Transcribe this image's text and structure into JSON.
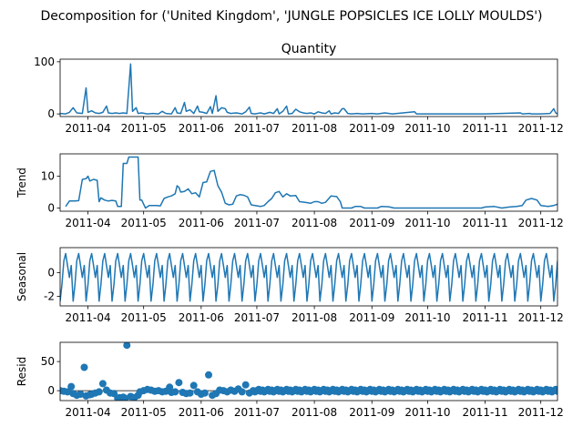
{
  "figure_title": "Decomposition for ('United Kingdom', 'JUNGLE POPSICLES ICE LOLLY MOULDS')",
  "colors": {
    "series": "#1f77b4",
    "axis": "#000000"
  },
  "chart_data": [
    {
      "type": "line",
      "title": "Quantity",
      "ylabel": "",
      "xlim": [
        "2011-03-17",
        "2011-12-10"
      ],
      "ylim": [
        -5,
        105
      ],
      "yticks": [
        0,
        100
      ],
      "xticks": [
        "2011-04",
        "2011-05",
        "2011-06",
        "2011-07",
        "2011-08",
        "2011-09",
        "2011-10",
        "2011-11",
        "2011-12"
      ],
      "grid": false,
      "points": [
        [
          "2011-03-17",
          1
        ],
        [
          "2011-03-20",
          0
        ],
        [
          "2011-03-22",
          3
        ],
        [
          "2011-03-24",
          12
        ],
        [
          "2011-03-26",
          2
        ],
        [
          "2011-03-29",
          1
        ],
        [
          "2011-03-31",
          50
        ],
        [
          "2011-04-01",
          3
        ],
        [
          "2011-04-03",
          6
        ],
        [
          "2011-04-05",
          2
        ],
        [
          "2011-04-07",
          1
        ],
        [
          "2011-04-09",
          3
        ],
        [
          "2011-04-11",
          15
        ],
        [
          "2011-04-12",
          2
        ],
        [
          "2011-04-14",
          1
        ],
        [
          "2011-04-16",
          2
        ],
        [
          "2011-04-18",
          1
        ],
        [
          "2011-04-20",
          2
        ],
        [
          "2011-04-22",
          1
        ],
        [
          "2011-04-24",
          96
        ],
        [
          "2011-04-25",
          5
        ],
        [
          "2011-04-27",
          12
        ],
        [
          "2011-04-28",
          1
        ],
        [
          "2011-04-30",
          2
        ],
        [
          "2011-05-03",
          0
        ],
        [
          "2011-05-06",
          1
        ],
        [
          "2011-05-09",
          0
        ],
        [
          "2011-05-11",
          5
        ],
        [
          "2011-05-13",
          1
        ],
        [
          "2011-05-16",
          0
        ],
        [
          "2011-05-18",
          12
        ],
        [
          "2011-05-19",
          2
        ],
        [
          "2011-05-21",
          1
        ],
        [
          "2011-05-23",
          22
        ],
        [
          "2011-05-24",
          5
        ],
        [
          "2011-05-26",
          8
        ],
        [
          "2011-05-28",
          1
        ],
        [
          "2011-05-30",
          15
        ],
        [
          "2011-05-31",
          4
        ],
        [
          "2011-06-02",
          3
        ],
        [
          "2011-06-04",
          1
        ],
        [
          "2011-06-06",
          14
        ],
        [
          "2011-06-07",
          1
        ],
        [
          "2011-06-09",
          35
        ],
        [
          "2011-06-10",
          5
        ],
        [
          "2011-06-12",
          12
        ],
        [
          "2011-06-14",
          10
        ],
        [
          "2011-06-15",
          3
        ],
        [
          "2011-06-17",
          1
        ],
        [
          "2011-06-20",
          2
        ],
        [
          "2011-06-23",
          0
        ],
        [
          "2011-06-25",
          4
        ],
        [
          "2011-06-27",
          13
        ],
        [
          "2011-06-28",
          1
        ],
        [
          "2011-06-30",
          0
        ],
        [
          "2011-07-03",
          2
        ],
        [
          "2011-07-05",
          0
        ],
        [
          "2011-07-08",
          3
        ],
        [
          "2011-07-10",
          1
        ],
        [
          "2011-07-12",
          10
        ],
        [
          "2011-07-13",
          0
        ],
        [
          "2011-07-15",
          5
        ],
        [
          "2011-07-17",
          15
        ],
        [
          "2011-07-18",
          0
        ],
        [
          "2011-07-20",
          1
        ],
        [
          "2011-07-22",
          9
        ],
        [
          "2011-07-24",
          4
        ],
        [
          "2011-07-26",
          2
        ],
        [
          "2011-07-28",
          1
        ],
        [
          "2011-07-30",
          2
        ],
        [
          "2011-08-01",
          0
        ],
        [
          "2011-08-03",
          4
        ],
        [
          "2011-08-05",
          2
        ],
        [
          "2011-08-07",
          1
        ],
        [
          "2011-08-09",
          6
        ],
        [
          "2011-08-10",
          0
        ],
        [
          "2011-08-12",
          2
        ],
        [
          "2011-08-14",
          1
        ],
        [
          "2011-08-16",
          10
        ],
        [
          "2011-08-17",
          10
        ],
        [
          "2011-08-19",
          1
        ],
        [
          "2011-08-21",
          0
        ],
        [
          "2011-08-24",
          1
        ],
        [
          "2011-08-27",
          0
        ],
        [
          "2011-09-01",
          1
        ],
        [
          "2011-09-04",
          0
        ],
        [
          "2011-09-08",
          2
        ],
        [
          "2011-09-12",
          0
        ],
        [
          "2011-09-24",
          4
        ],
        [
          "2011-09-25",
          0
        ],
        [
          "2011-10-15",
          0
        ],
        [
          "2011-11-01",
          0
        ],
        [
          "2011-11-20",
          2
        ],
        [
          "2011-11-21",
          0
        ],
        [
          "2011-11-25",
          1
        ],
        [
          "2011-11-26",
          0
        ],
        [
          "2011-12-01",
          0
        ],
        [
          "2011-12-06",
          1
        ],
        [
          "2011-12-08",
          10
        ],
        [
          "2011-12-09",
          2
        ],
        [
          "2011-12-10",
          0
        ]
      ]
    },
    {
      "type": "line",
      "title": "",
      "ylabel": "Trend",
      "xlim": [
        "2011-03-17",
        "2011-12-10"
      ],
      "ylim": [
        -1,
        17
      ],
      "yticks": [
        0,
        10
      ],
      "xticks": [
        "2011-04",
        "2011-05",
        "2011-06",
        "2011-07",
        "2011-08",
        "2011-09",
        "2011-10",
        "2011-11",
        "2011-12"
      ],
      "grid": false,
      "points": [
        [
          "2011-03-20",
          0.5
        ],
        [
          "2011-03-22",
          2.2
        ],
        [
          "2011-03-25",
          2.2
        ],
        [
          "2011-03-27",
          2.3
        ],
        [
          "2011-03-29",
          9.0
        ],
        [
          "2011-03-31",
          9.2
        ],
        [
          "2011-04-01",
          10.0
        ],
        [
          "2011-04-02",
          8.5
        ],
        [
          "2011-04-04",
          9.0
        ],
        [
          "2011-04-06",
          8.7
        ],
        [
          "2011-04-07",
          2.0
        ],
        [
          "2011-04-08",
          3.2
        ],
        [
          "2011-04-10",
          2.5
        ],
        [
          "2011-04-12",
          2.2
        ],
        [
          "2011-04-14",
          2.4
        ],
        [
          "2011-04-16",
          2.2
        ],
        [
          "2011-04-17",
          0.5
        ],
        [
          "2011-04-19",
          0.5
        ],
        [
          "2011-04-20",
          14.0
        ],
        [
          "2011-04-22",
          14.0
        ],
        [
          "2011-04-23",
          16.0
        ],
        [
          "2011-04-28",
          16.0
        ],
        [
          "2011-04-29",
          2.5
        ],
        [
          "2011-04-30",
          2.5
        ],
        [
          "2011-05-02",
          0.0
        ],
        [
          "2011-05-04",
          0.8
        ],
        [
          "2011-05-06",
          0.8
        ],
        [
          "2011-05-08",
          0.8
        ],
        [
          "2011-05-10",
          0.7
        ],
        [
          "2011-05-12",
          3.0
        ],
        [
          "2011-05-14",
          3.5
        ],
        [
          "2011-05-16",
          3.8
        ],
        [
          "2011-05-18",
          4.5
        ],
        [
          "2011-05-19",
          7.0
        ],
        [
          "2011-05-20",
          6.5
        ],
        [
          "2011-05-21",
          5.0
        ],
        [
          "2011-05-23",
          5.2
        ],
        [
          "2011-05-25",
          6.0
        ],
        [
          "2011-05-27",
          4.5
        ],
        [
          "2011-05-29",
          4.8
        ],
        [
          "2011-05-31",
          3.5
        ],
        [
          "2011-06-02",
          8.0
        ],
        [
          "2011-06-04",
          8.2
        ],
        [
          "2011-06-06",
          11.5
        ],
        [
          "2011-06-08",
          11.8
        ],
        [
          "2011-06-10",
          7.0
        ],
        [
          "2011-06-12",
          5.0
        ],
        [
          "2011-06-14",
          1.5
        ],
        [
          "2011-06-16",
          1.0
        ],
        [
          "2011-06-18",
          1.2
        ],
        [
          "2011-06-20",
          3.8
        ],
        [
          "2011-06-22",
          4.2
        ],
        [
          "2011-06-24",
          4.0
        ],
        [
          "2011-06-26",
          3.5
        ],
        [
          "2011-06-28",
          1.0
        ],
        [
          "2011-06-30",
          0.8
        ],
        [
          "2011-07-03",
          0.5
        ],
        [
          "2011-07-05",
          0.8
        ],
        [
          "2011-07-07",
          2.0
        ],
        [
          "2011-07-09",
          3.0
        ],
        [
          "2011-07-11",
          4.8
        ],
        [
          "2011-07-13",
          5.2
        ],
        [
          "2011-07-15",
          3.5
        ],
        [
          "2011-07-17",
          4.5
        ],
        [
          "2011-07-19",
          3.8
        ],
        [
          "2011-07-22",
          3.9
        ],
        [
          "2011-07-24",
          2.0
        ],
        [
          "2011-07-27",
          1.8
        ],
        [
          "2011-07-30",
          1.5
        ],
        [
          "2011-08-01",
          2.0
        ],
        [
          "2011-08-03",
          2.0
        ],
        [
          "2011-08-05",
          1.5
        ],
        [
          "2011-08-07",
          1.8
        ],
        [
          "2011-08-10",
          3.8
        ],
        [
          "2011-08-13",
          3.6
        ],
        [
          "2011-08-15",
          2.0
        ],
        [
          "2011-08-16",
          0.0
        ],
        [
          "2011-08-21",
          0.0
        ],
        [
          "2011-08-23",
          0.5
        ],
        [
          "2011-08-26",
          0.5
        ],
        [
          "2011-08-28",
          0.0
        ],
        [
          "2011-09-04",
          0.0
        ],
        [
          "2011-09-06",
          0.5
        ],
        [
          "2011-09-10",
          0.4
        ],
        [
          "2011-09-13",
          0.0
        ],
        [
          "2011-09-30",
          0.0
        ],
        [
          "2011-10-15",
          0.0
        ],
        [
          "2011-10-30",
          0.0
        ],
        [
          "2011-11-01",
          0.3
        ],
        [
          "2011-11-06",
          0.5
        ],
        [
          "2011-11-10",
          0.0
        ],
        [
          "2011-11-14",
          0.3
        ],
        [
          "2011-11-18",
          0.5
        ],
        [
          "2011-11-21",
          0.8
        ],
        [
          "2011-11-23",
          2.5
        ],
        [
          "2011-11-26",
          3.0
        ],
        [
          "2011-11-29",
          2.5
        ],
        [
          "2011-12-01",
          0.8
        ],
        [
          "2011-12-05",
          0.5
        ],
        [
          "2011-12-08",
          0.8
        ],
        [
          "2011-12-10",
          1.2
        ]
      ]
    },
    {
      "type": "line",
      "title": "",
      "ylabel": "Seasonal",
      "xlim": [
        "2011-03-17",
        "2011-12-10"
      ],
      "ylim": [
        -2.8,
        2.1
      ],
      "yticks": [
        -2,
        0
      ],
      "xticks": [
        "2011-04",
        "2011-05",
        "2011-06",
        "2011-07",
        "2011-08",
        "2011-09",
        "2011-10",
        "2011-11",
        "2011-12"
      ],
      "grid": false,
      "period_start": "2011-03-17",
      "period_days": 7,
      "cycle": [
        -2.4,
        -1.0,
        1.0,
        1.6,
        0.6,
        -0.4,
        0.6
      ]
    },
    {
      "type": "scatter",
      "title": "",
      "ylabel": "Resid",
      "xlim": [
        "2011-03-17",
        "2011-12-10"
      ],
      "ylim": [
        -17,
        83
      ],
      "yticks": [
        0,
        50
      ],
      "xticks": [
        "2011-04",
        "2011-05",
        "2011-06",
        "2011-07",
        "2011-08",
        "2011-09",
        "2011-10",
        "2011-11",
        "2011-12"
      ],
      "grid": false,
      "points": [
        [
          "2011-03-17",
          0
        ],
        [
          "2011-03-19",
          -1
        ],
        [
          "2011-03-21",
          -2
        ],
        [
          "2011-03-23",
          7
        ],
        [
          "2011-03-24",
          -5
        ],
        [
          "2011-03-26",
          -8
        ],
        [
          "2011-03-28",
          -6
        ],
        [
          "2011-03-30",
          40
        ],
        [
          "2011-03-31",
          -9
        ],
        [
          "2011-04-02",
          -7
        ],
        [
          "2011-04-03",
          -6
        ],
        [
          "2011-04-05",
          -4
        ],
        [
          "2011-04-07",
          -2
        ],
        [
          "2011-04-09",
          12
        ],
        [
          "2011-04-11",
          1
        ],
        [
          "2011-04-13",
          -4
        ],
        [
          "2011-04-15",
          -5
        ],
        [
          "2011-04-17",
          -13
        ],
        [
          "2011-04-18",
          -12
        ],
        [
          "2011-04-20",
          -11
        ],
        [
          "2011-04-21",
          -13
        ],
        [
          "2011-04-22",
          78
        ],
        [
          "2011-04-24",
          -10
        ],
        [
          "2011-04-26",
          -12
        ],
        [
          "2011-04-28",
          -8
        ],
        [
          "2011-04-29",
          -2
        ],
        [
          "2011-05-01",
          0
        ],
        [
          "2011-05-03",
          2
        ],
        [
          "2011-05-05",
          1
        ],
        [
          "2011-05-07",
          -1
        ],
        [
          "2011-05-09",
          0
        ],
        [
          "2011-05-11",
          -2
        ],
        [
          "2011-05-13",
          -1
        ],
        [
          "2011-05-15",
          6
        ],
        [
          "2011-05-16",
          -3
        ],
        [
          "2011-05-18",
          -2
        ],
        [
          "2011-05-20",
          14
        ],
        [
          "2011-05-22",
          -3
        ],
        [
          "2011-05-24",
          -5
        ],
        [
          "2011-05-26",
          -4
        ],
        [
          "2011-05-28",
          9
        ],
        [
          "2011-05-30",
          -2
        ],
        [
          "2011-06-01",
          -6
        ],
        [
          "2011-06-03",
          -4
        ],
        [
          "2011-06-05",
          27
        ],
        [
          "2011-06-07",
          -8
        ],
        [
          "2011-06-09",
          -5
        ],
        [
          "2011-06-11",
          1
        ],
        [
          "2011-06-13",
          0
        ],
        [
          "2011-06-15",
          -2
        ],
        [
          "2011-06-17",
          1
        ],
        [
          "2011-06-19",
          -1
        ],
        [
          "2011-06-21",
          3
        ],
        [
          "2011-06-23",
          -2
        ],
        [
          "2011-06-25",
          10
        ],
        [
          "2011-06-27",
          -4
        ],
        [
          "2011-06-29",
          0
        ]
      ]
    }
  ]
}
